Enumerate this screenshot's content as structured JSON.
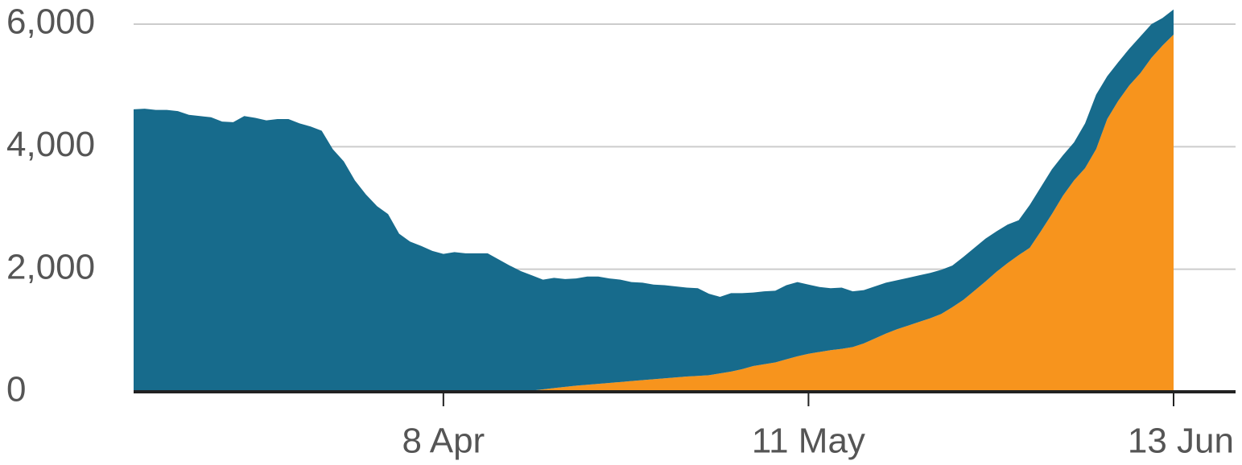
{
  "chart_data": {
    "type": "area",
    "stacked": true,
    "grid": true,
    "categories": [
      null,
      null,
      null,
      null,
      null,
      null,
      null,
      null,
      null,
      null,
      null,
      null,
      null,
      null,
      null,
      null,
      null,
      null,
      null,
      null,
      null,
      null,
      null,
      null,
      null,
      null,
      null,
      null,
      "8 Apr",
      null,
      null,
      null,
      null,
      null,
      null,
      null,
      null,
      null,
      null,
      null,
      null,
      null,
      null,
      null,
      null,
      null,
      null,
      null,
      null,
      null,
      null,
      null,
      null,
      null,
      null,
      null,
      null,
      null,
      null,
      null,
      null,
      "11 May",
      null,
      null,
      null,
      null,
      null,
      null,
      null,
      null,
      null,
      null,
      null,
      null,
      null,
      null,
      null,
      null,
      null,
      null,
      null,
      null,
      null,
      null,
      null,
      null,
      null,
      null,
      null,
      null,
      null,
      null,
      null,
      null,
      "13 Jun"
    ],
    "series": [
      {
        "color": "#f7941d",
        "values": [
          0,
          0,
          0,
          0,
          0,
          0,
          0,
          0,
          0,
          0,
          0,
          0,
          0,
          0,
          0,
          0,
          0,
          0,
          0,
          0,
          0,
          0,
          0,
          0,
          0,
          0,
          0,
          0,
          0,
          0,
          0,
          0,
          0,
          0,
          0,
          0,
          20,
          40,
          60,
          80,
          100,
          115,
          130,
          145,
          160,
          175,
          190,
          205,
          220,
          235,
          250,
          260,
          270,
          300,
          330,
          370,
          420,
          450,
          480,
          530,
          580,
          620,
          650,
          680,
          700,
          730,
          790,
          870,
          950,
          1020,
          1080,
          1140,
          1200,
          1270,
          1380,
          1500,
          1650,
          1800,
          1960,
          2100,
          2230,
          2350,
          2620,
          2900,
          3200,
          3450,
          3650,
          3960,
          4450,
          4750,
          5000,
          5200,
          5450,
          5650,
          5830
        ]
      },
      {
        "color": "#176b8c",
        "values": [
          4610,
          4620,
          4600,
          4600,
          4580,
          4520,
          4500,
          4480,
          4410,
          4400,
          4500,
          4470,
          4430,
          4450,
          4450,
          4380,
          4330,
          4260,
          3960,
          3760,
          3450,
          3220,
          3030,
          2900,
          2580,
          2450,
          2380,
          2300,
          2250,
          2280,
          2260,
          2260,
          2260,
          2160,
          2060,
          1970,
          1880,
          1790,
          1800,
          1760,
          1750,
          1765,
          1750,
          1705,
          1670,
          1615,
          1590,
          1545,
          1520,
          1485,
          1450,
          1430,
          1330,
          1250,
          1280,
          1240,
          1200,
          1190,
          1170,
          1210,
          1210,
          1130,
          1060,
          1010,
          1000,
          910,
          870,
          850,
          830,
          800,
          780,
          760,
          740,
          720,
          680,
          700,
          700,
          700,
          660,
          630,
          570,
          700,
          720,
          730,
          660,
          620,
          730,
          890,
          700,
          630,
          600,
          600,
          550,
          450,
          410
        ]
      }
    ],
    "ylim": [
      0,
      6000
    ],
    "yticks": [
      0,
      {
        "value": 2000,
        "label": "2,000"
      },
      {
        "value": 4000,
        "label": "4,000"
      },
      {
        "value": 6000,
        "label": "6,000"
      }
    ]
  }
}
